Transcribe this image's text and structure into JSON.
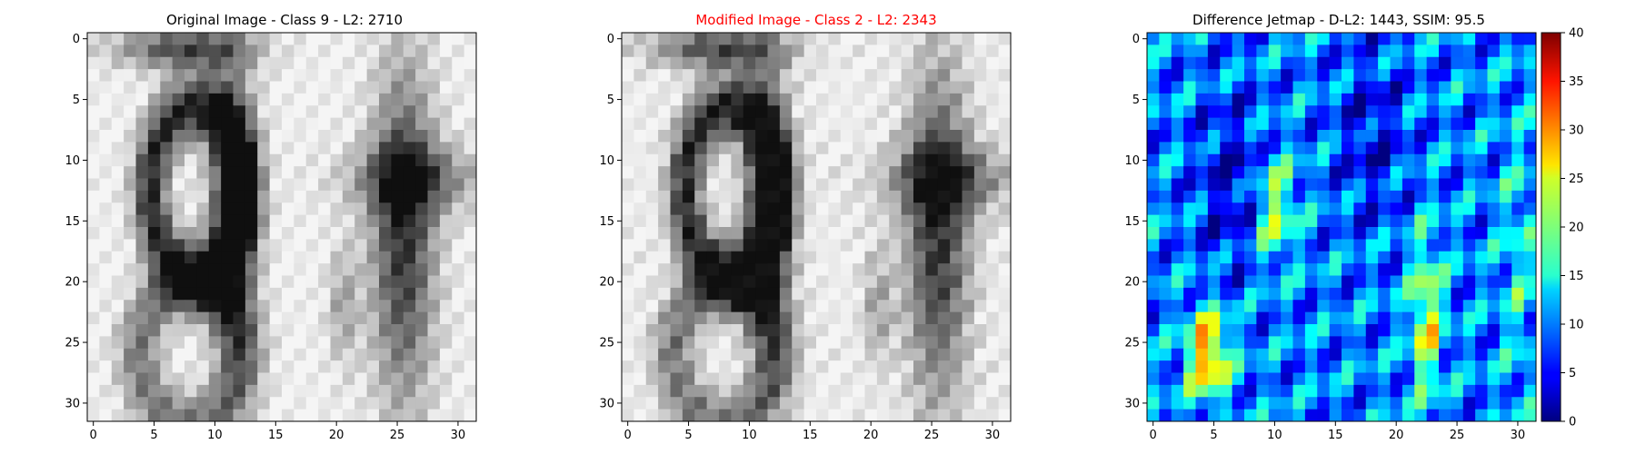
{
  "figure": {
    "background": "#ffffff"
  },
  "chart_data": [
    {
      "type": "heatmap",
      "title": "Original Image - Class 9 - L2: 2710",
      "title_color": "#000000",
      "colormap": "gray",
      "rows": 32,
      "cols": 32,
      "xlim": [
        -0.5,
        31.5
      ],
      "ylim": [
        31.5,
        -0.5
      ],
      "xticks": [
        "0",
        "5",
        "10",
        "15",
        "20",
        "25",
        "30"
      ],
      "yticks": [
        "0",
        "5",
        "10",
        "15",
        "20",
        "25",
        "30"
      ],
      "content": "grayscale digit image showing '9' (left) and '1' (right)"
    },
    {
      "type": "heatmap",
      "title": "Modified Image - Class 2 - L2: 2343",
      "title_color": "#ff0000",
      "colormap": "gray",
      "rows": 32,
      "cols": 32,
      "xlim": [
        -0.5,
        31.5
      ],
      "ylim": [
        31.5,
        -0.5
      ],
      "xticks": [
        "0",
        "5",
        "10",
        "15",
        "20",
        "25",
        "30"
      ],
      "yticks": [
        "0",
        "5",
        "10",
        "15",
        "20",
        "25",
        "30"
      ],
      "content": "slightly perturbed version of the original digit image"
    },
    {
      "type": "heatmap",
      "title": "Difference Jetmap - D-L2: 1443, SSIM: 95.5",
      "title_color": "#000000",
      "colormap": "jet",
      "rows": 32,
      "cols": 32,
      "xlim": [
        -0.5,
        31.5
      ],
      "ylim": [
        31.5,
        -0.5
      ],
      "xticks": [
        "0",
        "5",
        "10",
        "15",
        "20",
        "25",
        "30"
      ],
      "yticks": [
        "0",
        "5",
        "10",
        "15",
        "20",
        "25",
        "30"
      ],
      "colorbar": {
        "range": [
          0,
          40
        ],
        "ticks": [
          "0",
          "5",
          "10",
          "15",
          "20",
          "25",
          "30",
          "35",
          "40"
        ]
      }
    }
  ]
}
